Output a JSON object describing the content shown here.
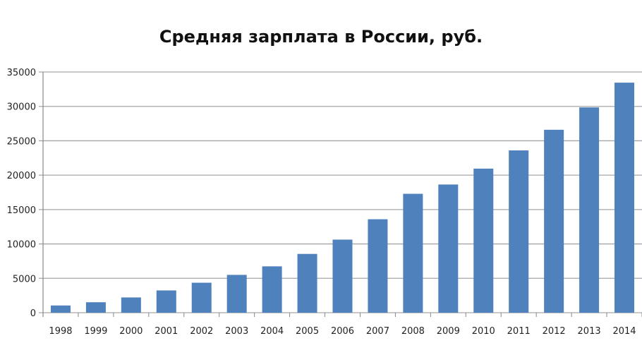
{
  "chart_data": {
    "type": "bar",
    "title": "Средняя зарплата в России, руб.",
    "xlabel": "",
    "ylabel": "",
    "ylim": [
      0,
      35000
    ],
    "yticks": [
      0,
      5000,
      10000,
      15000,
      20000,
      25000,
      30000,
      35000
    ],
    "grid": true,
    "legend": "none",
    "bar_color": "#4f81bd",
    "categories": [
      "1998",
      "1999",
      "2000",
      "2001",
      "2002",
      "2003",
      "2004",
      "2005",
      "2006",
      "2007",
      "2008",
      "2009",
      "2010",
      "2011",
      "2012",
      "2013",
      "2014"
    ],
    "values": [
      1050,
      1520,
      2220,
      3240,
      4360,
      5500,
      6740,
      8550,
      10630,
      13590,
      17290,
      18640,
      20950,
      23600,
      26600,
      29850,
      33450
    ]
  }
}
